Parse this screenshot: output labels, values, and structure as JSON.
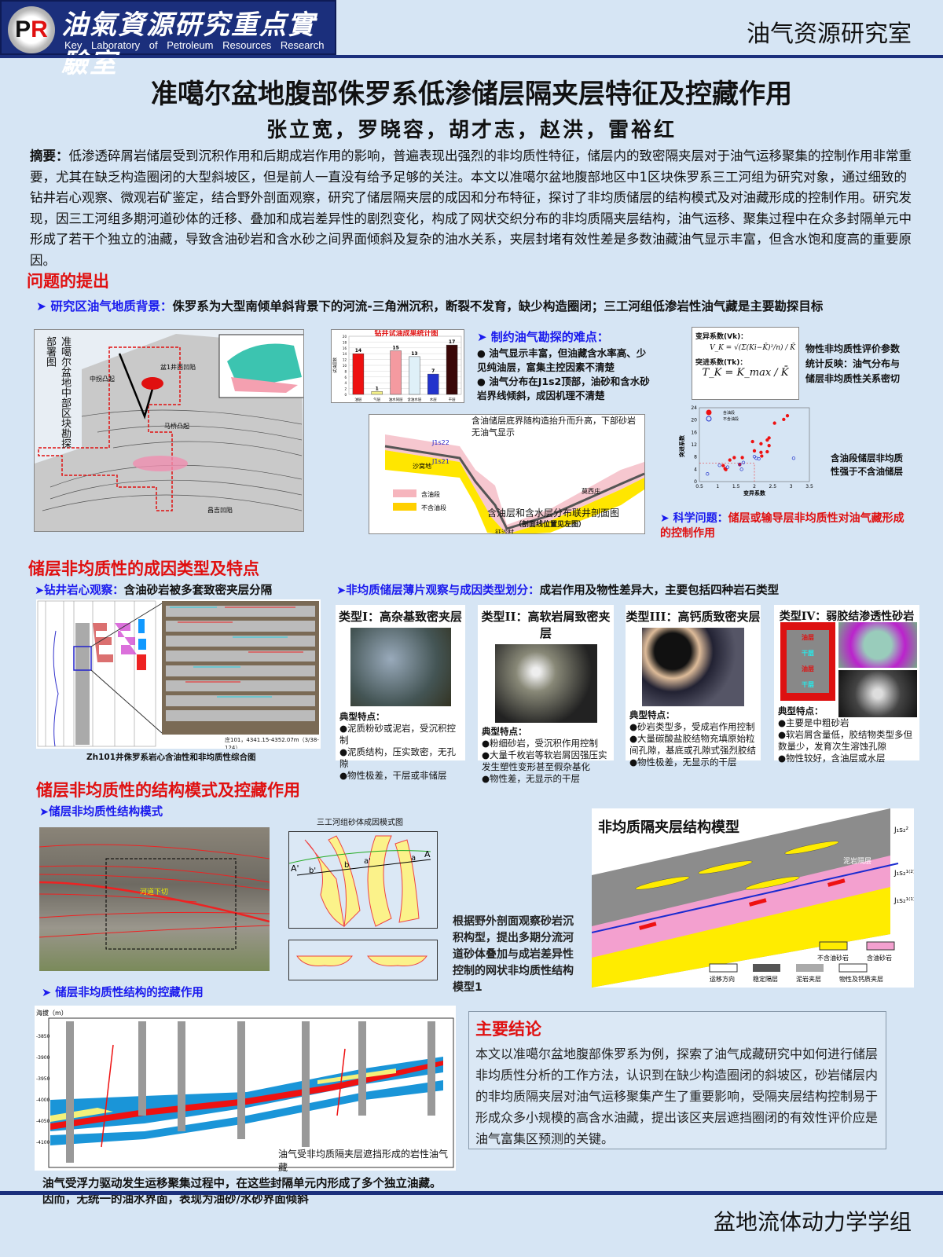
{
  "header": {
    "logo_initials": "PR",
    "logo_cn": "油氣資源研究重点實驗室",
    "logo_en": "Key Laboratory of Petroleum Resources Research",
    "org": "油气资源研究室"
  },
  "title": "准噶尔盆地腹部侏罗系低渗储层隔夹层特征及控藏作用",
  "authors": "张立宽，罗晓容，胡才志，赵洪，雷裕红",
  "abstract": {
    "label": "摘要：",
    "text": "低渗透碎屑岩储层受到沉积作用和后期成岩作用的影响，普遍表现出强烈的非均质性特征，储层内的致密隔夹层对于油气运移聚集的控制作用非常重要，尤其在缺乏构造圈闭的大型斜坡区，但是前人一直没有给予足够的关注。本文以准噶尔盆地腹部地区中1区块侏罗系三工河组为研究对象，通过细致的钻井岩心观察、微观岩矿鉴定，结合野外剖面观察，研究了储层隔夹层的成因和分布特征，探讨了非均质储层的结构模式及对油藏形成的控制作用。研究发现，因三工河组多期河道砂体的迁移、叠加和成岩差异性的剧烈变化，构成了网状交织分布的非均质隔夹层结构，油气运移、聚集过程中在众多封隔单元中形成了若干个独立的油藏，导致含油砂岩和含水砂之间界面倾斜及复杂的油水关系，夹层封堵有效性差是多数油藏油气显示丰富，但含水饱和度高的重要原因。"
  },
  "section1": {
    "heading": "问题的提出",
    "bg_label": "研究区油气地质背景：",
    "bg_text": "侏罗系为大型南倾单斜背景下的河流-三角洲沉积，断裂不发育，缺少构造圈闭；三工河组低渗岩性油气藏是主要勘探目标",
    "map": {
      "title": "准噶尔盆地中部区块勘探部署图",
      "labels": [
        "盆1井西凹陷",
        "马桥凸起",
        "中拐凸起",
        "昌吉凹陷"
      ]
    },
    "difficulty": {
      "heading": "制约油气勘探的难点：",
      "items": [
        "油气显示丰富，但油藏含水率高、少见纯油层，富集主控因素不清楚",
        "油气分布在J1s2顶部，油砂和含水砂岩界线倾斜，成因机理不清楚"
      ]
    },
    "section_fig": {
      "note": "含油储层底界随构造抬升而升高，下部砂岩无油气显示",
      "caption": "含油层和含水层分布联井剖面图",
      "caption2": "（剖面线位置见左图）",
      "legend": [
        "含油段",
        "不含油段"
      ],
      "areas": [
        "沙窝地",
        "征沙村",
        "莫西庄"
      ],
      "layers": [
        "J1s22",
        "J1s21"
      ]
    },
    "formula": {
      "vk_label": "变异系数(Vk)：",
      "tk_label": "突进系数(Tk)：",
      "vk_formula": "V_K = √(Σ(Ki−K̄)²/n) / K̄",
      "tk_formula": "T_K = K_max / K̄"
    },
    "formula_note": "物性非均质性评价参数统计反映：油气分布与储层非均质性关系密切",
    "scatter_note": "含油段储层非均质性强于不含油储层",
    "question_label": "科学问题：",
    "question_text": "储层或输导层非均质性对油气藏形成的控制作用"
  },
  "chart_data": [
    {
      "type": "bar",
      "title": "钻井试油成果统计图",
      "ylabel": "试油层数",
      "categories": [
        "油层",
        "气层",
        "油水同层",
        "含油水层",
        "水层",
        "干层"
      ],
      "values": [
        14,
        1,
        15,
        13,
        7,
        17
      ],
      "ylim": [
        0,
        20
      ],
      "yticks": [
        0,
        2,
        4,
        6,
        8,
        10,
        12,
        14,
        16,
        18,
        20
      ],
      "colors": [
        "#ee1111",
        "#f4f08a",
        "#f49aa0",
        "#dff0f8",
        "#2233cc",
        "#3a0808"
      ]
    },
    {
      "type": "scatter",
      "xlabel": "变异系数",
      "ylabel": "突进系数",
      "xlim": [
        0.5,
        3.5
      ],
      "ylim": [
        0,
        24
      ],
      "xticks": [
        0.5,
        1,
        1.5,
        2,
        2.5,
        3,
        3.5
      ],
      "yticks": [
        0,
        4,
        8,
        12,
        16,
        20,
        24
      ],
      "legend": "top-left",
      "series": [
        {
          "name": "含油段",
          "color": "#ee1111",
          "marker": "filled-circle",
          "points": [
            [
              1.15,
              5.2
            ],
            [
              1.2,
              4.2
            ],
            [
              1.22,
              3.9
            ],
            [
              1.33,
              7.0
            ],
            [
              1.45,
              7.8
            ],
            [
              1.6,
              5.5
            ],
            [
              1.67,
              7.8
            ],
            [
              1.95,
              13
            ],
            [
              2.0,
              10
            ],
            [
              2.18,
              12.3
            ],
            [
              2.18,
              9.5
            ],
            [
              2.2,
              8.3
            ],
            [
              2.35,
              9.7
            ],
            [
              2.35,
              13.5
            ],
            [
              2.4,
              14.2
            ],
            [
              2.4,
              11.7
            ],
            [
              2.55,
              19
            ],
            [
              2.8,
              20.2
            ],
            [
              2.9,
              21.4
            ]
          ]
        },
        {
          "name": "不含油段",
          "color": "#2233cc",
          "marker": "open-circle",
          "points": [
            [
              0.72,
              2.5
            ],
            [
              1.05,
              5.3
            ],
            [
              1.27,
              4.7
            ],
            [
              1.6,
              5.6
            ],
            [
              1.65,
              4.0
            ],
            [
              1.7,
              6.2
            ],
            [
              2.0,
              8.1
            ],
            [
              2.05,
              7.6
            ],
            [
              2.12,
              7.4
            ],
            [
              3.07,
              7.6
            ]
          ]
        }
      ]
    }
  ],
  "section2": {
    "heading": "储层非均质性的成因类型及特点",
    "core_label": "钻井岩心观察：",
    "core_text": "含油砂岩被多套致密夹层分隔",
    "core_photo_caption": "庄101，4341.15-4352.07m（3/38-124）",
    "core_caption": "Zh101井侏罗系岩心含油性和非均质性综合图",
    "thin_label": "非均质储层薄片观察与成因类型划分：",
    "thin_text": "成岩作用及物性差异大，主要包括四种岩石类型",
    "types": [
      {
        "title": "类型I：高杂基致密夹层",
        "feat_label": "典型特点：",
        "items": [
          "泥质粉砂或泥岩，受沉积控制",
          "泥质结构，压实致密，无孔隙",
          "物性极差，干层或非储层"
        ]
      },
      {
        "title": "类型II：高软岩屑致密夹层",
        "feat_label": "典型特点：",
        "items": [
          "粉细砂岩，受沉积作用控制",
          "大量千枚岩等软岩屑因强压实发生塑性变形甚至假杂基化",
          "物性差，无显示的干层"
        ]
      },
      {
        "title": "类型III：高钙质致密夹层",
        "feat_label": "典型特点：",
        "items": [
          "砂岩类型多，受成岩作用控制",
          "大量碳酸盐胶结物充填原始粒间孔隙，基底或孔隙式强烈胶结",
          "物性极差，无显示的干层"
        ]
      },
      {
        "title": "类型IV：弱胶结渗透性砂岩",
        "feat_label": "典型特点：",
        "items": [
          "主要是中粗砂岩",
          "软岩屑含量低，胶结物类型多但数量少，发育次生溶蚀孔隙",
          "物性较好，含油层或水层"
        ],
        "core_labels": [
          "油层",
          "干层",
          "油层",
          "干层"
        ]
      }
    ]
  },
  "section3": {
    "heading": "储层非均质性的结构模式及控藏作用",
    "sub1": "储层非均质性结构模式",
    "photo_label": "河道下切",
    "pattern_title": "三工河组砂体成因模式图",
    "pattern_labels": [
      "A",
      "A'",
      "a",
      "a'",
      "b",
      "b'"
    ],
    "pattern_text": "根据野外剖面观察砂岩沉积构型，提出多期分流河道砂体叠加与成岩差异性控制的网状非均质性结构模型1",
    "model": {
      "title": "非均质隔夹层结构模型",
      "layers": [
        "J₁s₂²",
        "J₁s₂¹⁽²⁾",
        "J₁s₂¹⁽¹⁾"
      ],
      "mud_label": "泥岩隔层",
      "legend": [
        "不含油砂岩",
        "含油砂岩",
        "运移方向",
        "稳定隔层",
        "泥岩夹层",
        "物性及钙质夹层"
      ]
    },
    "sub2": "储层非均质性结构的控藏作用",
    "xsec": {
      "axis_label": "海拔（m）",
      "yticks": [
        "-3850",
        "-3900",
        "-3950",
        "-4000",
        "-4050",
        "-4100"
      ],
      "caption": "油气受非均质隔夹层遮挡形成的岩性油气藏"
    },
    "bottom_text": "油气受浮力驱动发生运移聚集过程中，在这些封隔单元内形成了多个独立油藏。因而，无统一的油水界面，表现为油砂/水砂界面倾斜"
  },
  "conclusion": {
    "heading": "主要结论",
    "text": "本文以准噶尔盆地腹部侏罗系为例，探索了油气成藏研究中如何进行储层非均质性分析的工作方法，认识到在缺少构造圈闭的斜坡区，砂岩储层内的非均质隔夹层对油气运移聚集产生了重要影响，受隔夹层结构控制易于形成众多小规模的高含水油藏，提出该区夹层遮挡圈闭的有效性评价应是油气富集区预测的关键。"
  },
  "footer": "盆地流体动力学学组"
}
